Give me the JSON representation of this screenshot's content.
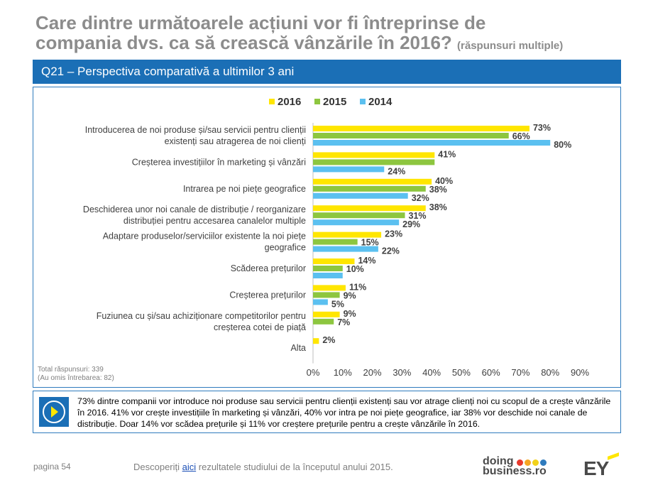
{
  "header": {
    "title_line1": "Care dintre următoarele acțiuni vor fi întreprinse de",
    "title_line2": "compania dvs. ca să crească vânzările în 2016?",
    "title_suffix": "(răspunsuri multiple)",
    "section_label": "Q21 – Perspectiva comparativă a ultimilor 3 ani"
  },
  "chart_data": {
    "type": "bar",
    "orientation": "horizontal",
    "categories": [
      "Introducerea de noi produse și/sau servicii pentru clienții existenți sau atragerea de noi clienți",
      "Creșterea investițiilor în marketing și vânzări",
      "Intrarea pe noi piețe geografice",
      "Deschiderea unor noi canale de distribuție / reorganizare distribuției pentru accesarea canalelor multiple",
      "Adaptare produselor/serviciilor existente la noi piețe geografice",
      "Scăderea prețurilor",
      "Creșterea prețurilor",
      "Fuziunea cu și/sau achiziționare competitorilor pentru creșterea cotei de piață",
      "Alta"
    ],
    "category_lines": [
      [
        "Introducerea de noi produse și/sau servicii pentru clienții",
        "existenți sau atragerea de noi clienți"
      ],
      [
        "Creșterea investițiilor în marketing și vânzări"
      ],
      [
        "Intrarea pe noi piețe geografice"
      ],
      [
        "Deschiderea unor noi canale de distribuție / reorganizare",
        "distribuției pentru accesarea canalelor multiple"
      ],
      [
        "Adaptare produselor/serviciilor existente la noi piețe",
        "geografice"
      ],
      [
        "Scăderea prețurilor"
      ],
      [
        "Creșterea prețurilor"
      ],
      [
        "Fuziunea cu și/sau achiziționare competitorilor pentru",
        "creșterea cotei de piață"
      ],
      [
        "Alta"
      ]
    ],
    "series": [
      {
        "name": "2016",
        "color": "#ffe600",
        "values": [
          73,
          41,
          40,
          38,
          23,
          14,
          11,
          9,
          2
        ]
      },
      {
        "name": "2015",
        "color": "#8dc63f",
        "values": [
          66,
          41,
          38,
          31,
          15,
          10,
          9,
          7,
          null
        ]
      },
      {
        "name": "2014",
        "color": "#5bc0f0",
        "values": [
          80,
          24,
          32,
          29,
          22,
          10,
          5,
          null,
          null
        ]
      }
    ],
    "data_labels": [
      [
        "73%",
        "66%",
        "80%"
      ],
      [
        "41%",
        "",
        "24%"
      ],
      [
        "40%",
        "38%",
        "32%"
      ],
      [
        "38%",
        "31%",
        "29%"
      ],
      [
        "23%",
        "15%",
        "22%"
      ],
      [
        "14%",
        "10%",
        ""
      ],
      [
        "11%",
        "9%",
        "5%"
      ],
      [
        "9%",
        "7%",
        ""
      ],
      [
        "2%",
        "",
        ""
      ]
    ],
    "xlim": [
      0,
      90
    ],
    "x_ticks": [
      "0%",
      "10%",
      "20%",
      "30%",
      "40%",
      "50%",
      "60%",
      "70%",
      "80%",
      "90%"
    ],
    "legend_position": "top-center",
    "gridlines": false
  },
  "notes": {
    "total": "Total răspunsuri: 339",
    "omitted": "(Au omis întrebarea:  82)"
  },
  "summary": {
    "text": "73% dintre companii vor introduce noi produse sau servicii pentru clienții existenți sau vor atrage clienți noi cu scopul de a crește vânzările în 2016. 41% vor crește investițiile în marketing și vânzări, 40% vor intra pe noi piețe geografice, iar 38% vor deschide noi canale de distribuție. Doar 14% vor scădea prețurile și 11% vor creștere prețurile pentru a crește vânzările în 2016."
  },
  "footer": {
    "page": "pagina 54",
    "link_prefix": "Descoperiți ",
    "link_text": "aici",
    "link_suffix": " rezultatele studiului de la începutul anului 2015.",
    "logo_line1": "doing",
    "logo_line2": "business.ro",
    "logo_dot_colors": [
      "#e8392c",
      "#f5a623",
      "#f2d21b",
      "#2f7bbd"
    ],
    "logo_ey": "EY"
  }
}
